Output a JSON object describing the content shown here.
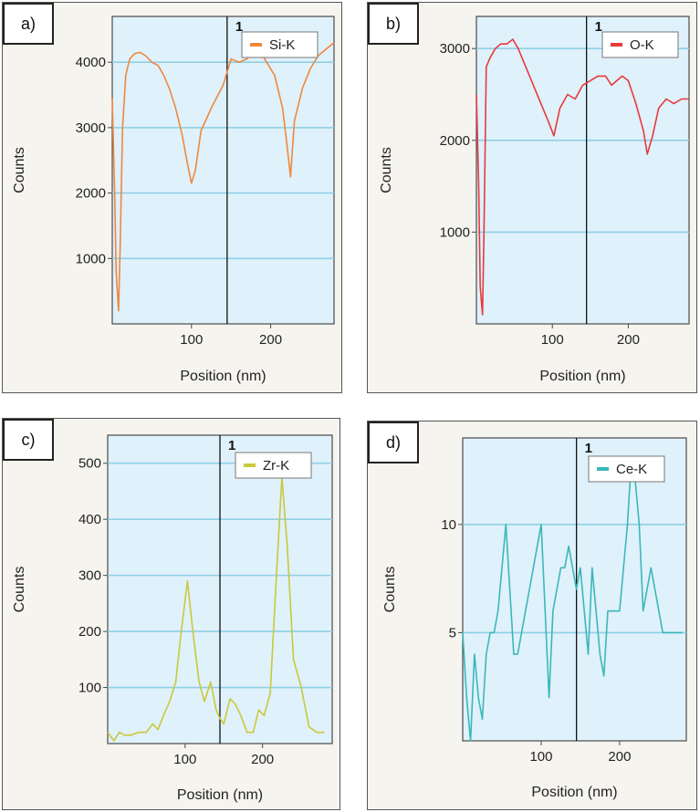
{
  "chart_data": [
    {
      "id": "a",
      "panel_label": "a)",
      "type": "line",
      "legend": "Si-K",
      "color": "#f0883c",
      "xlabel": "Position (nm)",
      "ylabel": "Counts",
      "marker_label": "1",
      "marker_x": 145,
      "xlim": [
        0,
        280
      ],
      "ylim": [
        0,
        4700
      ],
      "xticks": [
        100,
        200
      ],
      "yticks": [
        1000,
        2000,
        3000,
        4000
      ],
      "x": [
        0,
        3,
        5,
        8,
        10,
        13,
        17,
        22,
        28,
        35,
        42,
        50,
        58,
        65,
        72,
        80,
        88,
        95,
        100,
        105,
        112,
        125,
        140,
        150,
        160,
        170,
        178,
        185,
        195,
        205,
        215,
        220,
        225,
        230,
        240,
        250,
        260,
        270,
        280
      ],
      "y": [
        3450,
        2000,
        800,
        200,
        1200,
        3000,
        3800,
        4050,
        4130,
        4150,
        4100,
        4000,
        3950,
        3800,
        3600,
        3300,
        2900,
        2450,
        2150,
        2350,
        2950,
        3300,
        3650,
        4050,
        4000,
        4050,
        4150,
        4200,
        4000,
        3800,
        3300,
        2800,
        2250,
        3100,
        3600,
        3900,
        4100,
        4200,
        4300
      ]
    },
    {
      "id": "b",
      "panel_label": "b)",
      "type": "line",
      "legend": "O-K",
      "color": "#e63b3b",
      "xlabel": "Position (nm)",
      "ylabel": "Counts",
      "marker_label": "1",
      "marker_x": 145,
      "xlim": [
        0,
        280
      ],
      "ylim": [
        0,
        3350
      ],
      "xticks": [
        100,
        200
      ],
      "yticks": [
        1000,
        2000,
        3000
      ],
      "x": [
        0,
        3,
        5,
        8,
        10,
        13,
        18,
        25,
        32,
        40,
        48,
        55,
        65,
        75,
        85,
        95,
        102,
        110,
        120,
        130,
        140,
        150,
        160,
        170,
        178,
        185,
        192,
        200,
        210,
        220,
        225,
        232,
        240,
        250,
        260,
        270,
        280
      ],
      "y": [
        2500,
        1500,
        400,
        100,
        1000,
        2800,
        2900,
        3000,
        3050,
        3050,
        3100,
        3000,
        2800,
        2600,
        2400,
        2200,
        2050,
        2350,
        2500,
        2450,
        2600,
        2650,
        2700,
        2700,
        2600,
        2650,
        2700,
        2650,
        2400,
        2100,
        1850,
        2050,
        2350,
        2450,
        2400,
        2450,
        2450
      ]
    },
    {
      "id": "c",
      "panel_label": "c)",
      "type": "line",
      "legend": "Zr-K",
      "color": "#c9c93a",
      "xlabel": "Position (nm)",
      "ylabel": "Counts",
      "marker_label": "1",
      "marker_x": 145,
      "xlim": [
        0,
        290
      ],
      "ylim": [
        0,
        550
      ],
      "xticks": [
        100,
        200
      ],
      "yticks": [
        100,
        200,
        300,
        400,
        500
      ],
      "x": [
        0,
        8,
        15,
        22,
        30,
        40,
        50,
        58,
        65,
        72,
        80,
        88,
        95,
        103,
        110,
        118,
        125,
        133,
        140,
        145,
        150,
        158,
        165,
        172,
        180,
        188,
        195,
        202,
        210,
        218,
        225,
        232,
        240,
        250,
        260,
        270,
        280
      ],
      "y": [
        20,
        5,
        20,
        15,
        15,
        20,
        20,
        35,
        25,
        50,
        75,
        110,
        200,
        290,
        200,
        110,
        75,
        110,
        60,
        45,
        35,
        80,
        70,
        50,
        20,
        20,
        60,
        50,
        90,
        300,
        475,
        350,
        150,
        100,
        30,
        20,
        20
      ]
    },
    {
      "id": "d",
      "panel_label": "d)",
      "type": "line",
      "legend": "Ce-K",
      "color": "#3bb8b8",
      "xlabel": "Position (nm)",
      "ylabel": "Counts",
      "marker_label": "1",
      "marker_x": 145,
      "xlim": [
        0,
        285
      ],
      "ylim": [
        0,
        14
      ],
      "xticks": [
        100,
        200
      ],
      "yticks": [
        5,
        10
      ],
      "x": [
        0,
        5,
        10,
        15,
        20,
        25,
        30,
        35,
        40,
        45,
        50,
        55,
        60,
        65,
        70,
        75,
        80,
        85,
        90,
        95,
        100,
        105,
        110,
        115,
        120,
        125,
        130,
        135,
        140,
        145,
        150,
        155,
        160,
        165,
        170,
        175,
        180,
        185,
        190,
        195,
        200,
        205,
        210,
        215,
        220,
        225,
        230,
        235,
        240,
        245,
        250,
        255,
        260,
        265,
        270,
        275,
        280
      ],
      "y": [
        5,
        2,
        0,
        4,
        2,
        1,
        4,
        5,
        5,
        6,
        8,
        10,
        7,
        4,
        4,
        5,
        6,
        7,
        8,
        9,
        10,
        6,
        2,
        6,
        7,
        8,
        8,
        9,
        8,
        7,
        8,
        6,
        4,
        8,
        6,
        4,
        3,
        6,
        6,
        6,
        6,
        8,
        10,
        13,
        12,
        10,
        6,
        7,
        8,
        7,
        6,
        5,
        5,
        5,
        5,
        5,
        5
      ]
    }
  ]
}
